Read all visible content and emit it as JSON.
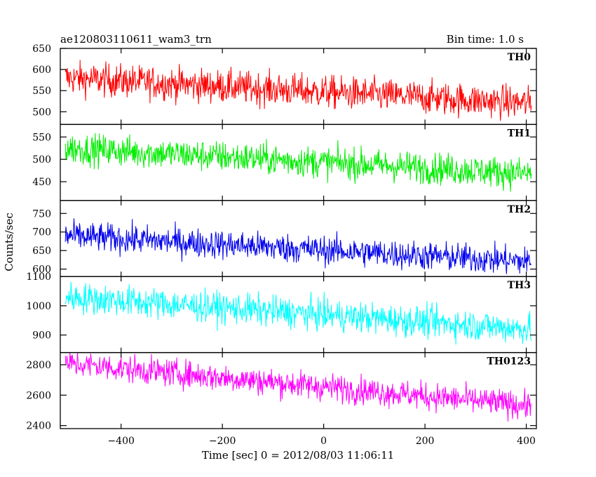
{
  "chart_data": {
    "type": "line",
    "title": "ae120803110611_wam3_trn",
    "subtitle": "Bin time: 1.0 s",
    "xlabel": "Time [sec] 0 = 2012/08/03 11:06:11",
    "ylabel": "Counts/sec",
    "xlim": [
      -520,
      420
    ],
    "x_ticks": [
      -400,
      -200,
      0,
      200,
      400
    ],
    "x_range": [
      -510,
      410
    ],
    "grid": false,
    "panels": [
      {
        "name": "TH0",
        "color": "#ff0000",
        "ylim": [
          470,
          650
        ],
        "y_ticks": [
          500,
          550,
          600,
          650
        ],
        "trend_start": 580,
        "trend_end": 520,
        "noise": 28
      },
      {
        "name": "TH1",
        "color": "#00ee00",
        "ylim": [
          408,
          578
        ],
        "y_ticks": [
          450,
          500,
          550
        ],
        "trend_start": 525,
        "trend_end": 468,
        "noise": 25
      },
      {
        "name": "TH2",
        "color": "#0000ee",
        "ylim": [
          580,
          785
        ],
        "y_ticks": [
          600,
          650,
          700,
          750
        ],
        "trend_start": 690,
        "trend_end": 620,
        "noise": 28
      },
      {
        "name": "TH3",
        "color": "#00ffff",
        "ylim": [
          840,
          1100
        ],
        "y_ticks": [
          900,
          1000,
          1100
        ],
        "trend_start": 1030,
        "trend_end": 920,
        "noise": 38
      },
      {
        "name": "TH0123",
        "color": "#ff00ff",
        "ylim": [
          2380,
          2880
        ],
        "y_ticks": [
          2400,
          2600,
          2800
        ],
        "trend_start": 2810,
        "trend_end": 2530,
        "noise": 65
      }
    ]
  }
}
